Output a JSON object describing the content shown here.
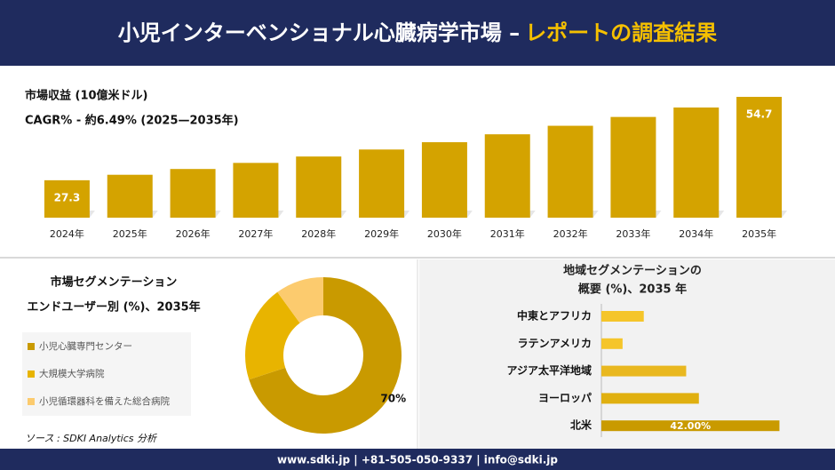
{
  "header": {
    "title_main": "小児インターベンショナル心臓病学市場 –",
    "title_highlight": "レポートの調査結果"
  },
  "chart_data": [
    {
      "type": "bar",
      "title": "市場収益 (10億米ドル)",
      "subtitle": "CAGR% - 約6.49% (2025—2035年)",
      "categories": [
        "2024年",
        "2025年",
        "2026年",
        "2027年",
        "2028年",
        "2029年",
        "2030年",
        "2031年",
        "2032年",
        "2033年",
        "2034年",
        "2035年"
      ],
      "values": [
        27.3,
        29.1,
        31.0,
        33.0,
        35.1,
        37.4,
        39.8,
        42.4,
        45.2,
        48.1,
        51.2,
        54.7
      ],
      "value_labels": [
        "27.3",
        null,
        null,
        null,
        null,
        null,
        null,
        null,
        null,
        null,
        null,
        "54.7"
      ],
      "color": "#d4a300",
      "ylim": [
        15,
        55
      ]
    },
    {
      "type": "donut",
      "title": "市場セグメンテーション",
      "subtitle": "エンドユーザー別 (%)、2035年",
      "categories": [
        "小児心臓専門センター",
        "大規模大学病院",
        "小児循環器科を備えた総合病院"
      ],
      "values": [
        70,
        20,
        10
      ],
      "value_labels": [
        "70%",
        null,
        null
      ],
      "colors": [
        "#c99a00",
        "#e8b400",
        "#fccb6e"
      ],
      "source": "ソース : SDKI Analytics 分析"
    },
    {
      "type": "hbar",
      "title": "地域セグメンテーションの",
      "subtitle": "概要 (%)、2035 年",
      "categories": [
        "中東とアフリカ",
        "ラテンアメリカ",
        "アジア太平洋地域",
        "ヨーロッパ",
        "北米"
      ],
      "values": [
        10,
        5,
        20,
        23,
        42
      ],
      "value_labels": [
        null,
        null,
        null,
        null,
        "42.00%"
      ],
      "colors": [
        "#f5c52a",
        "#f5c52a",
        "#e9b820",
        "#e0b010",
        "#c99a00"
      ],
      "xlim": [
        0,
        44
      ]
    }
  ],
  "footer": {
    "text": "www.sdki.jp | +81-505-050-9337 | info@sdki.jp"
  }
}
